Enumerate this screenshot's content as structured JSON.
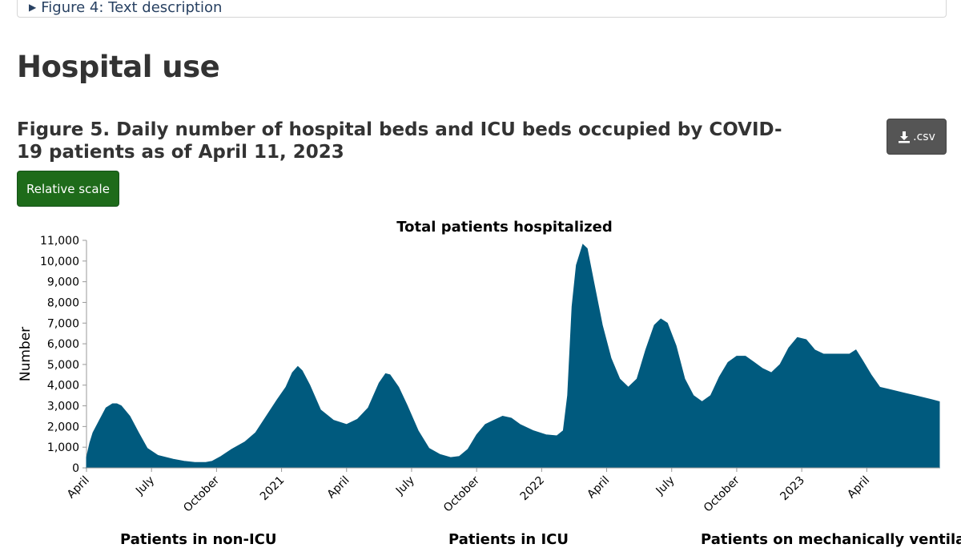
{
  "details": {
    "summary": "Figure 4: Text description"
  },
  "section_title": "Hospital use",
  "figure_title": "Figure 5. Daily number of hospital beds and ICU beds occupied by COVID-19 patients as of April 11, 2023",
  "buttons": {
    "csv_label": ".csv",
    "scale_label": "Relative scale"
  },
  "colors": {
    "bar": "#005a7e",
    "scale_button": "#1e6b1a",
    "csv_button": "#555555"
  },
  "chart_data": {
    "type": "area",
    "title": "Total patients hospitalized",
    "xlabel": "",
    "ylabel": "Number",
    "ylim": [
      0,
      11000
    ],
    "yticks": [
      0,
      1000,
      2000,
      3000,
      4000,
      5000,
      6000,
      7000,
      8000,
      9000,
      10000,
      11000
    ],
    "ytick_labels": [
      "0",
      "1,000",
      "2,000",
      "3,000",
      "4,000",
      "5,000",
      "6,000",
      "7,000",
      "8,000",
      "9,000",
      "10,000",
      "11,000"
    ],
    "x_start_month": "2020-04",
    "x_end_month": "2023-04",
    "xticks": [
      {
        "label": "April",
        "month_index": 0
      },
      {
        "label": "July",
        "month_index": 3
      },
      {
        "label": "October",
        "month_index": 6
      },
      {
        "label": "2021",
        "month_index": 9
      },
      {
        "label": "April",
        "month_index": 12
      },
      {
        "label": "July",
        "month_index": 15
      },
      {
        "label": "October",
        "month_index": 18
      },
      {
        "label": "2022",
        "month_index": 21
      },
      {
        "label": "April",
        "month_index": 24
      },
      {
        "label": "July",
        "month_index": 27
      },
      {
        "label": "October",
        "month_index": 30
      },
      {
        "label": "2023",
        "month_index": 33
      },
      {
        "label": "April",
        "month_index": 36
      }
    ],
    "series": [
      {
        "name": "Total patients hospitalized",
        "points": [
          [
            0.0,
            500
          ],
          [
            0.15,
            1200
          ],
          [
            0.3,
            1700
          ],
          [
            0.6,
            2300
          ],
          [
            0.9,
            2900
          ],
          [
            1.2,
            3100
          ],
          [
            1.4,
            3100
          ],
          [
            1.6,
            3000
          ],
          [
            2.0,
            2500
          ],
          [
            2.4,
            1700
          ],
          [
            2.8,
            950
          ],
          [
            3.3,
            600
          ],
          [
            4.0,
            420
          ],
          [
            4.5,
            320
          ],
          [
            5.0,
            260
          ],
          [
            5.5,
            260
          ],
          [
            5.8,
            320
          ],
          [
            6.2,
            550
          ],
          [
            6.7,
            900
          ],
          [
            7.3,
            1250
          ],
          [
            7.8,
            1700
          ],
          [
            8.3,
            2500
          ],
          [
            8.8,
            3300
          ],
          [
            9.2,
            3900
          ],
          [
            9.5,
            4600
          ],
          [
            9.75,
            4900
          ],
          [
            9.95,
            4700
          ],
          [
            10.3,
            4000
          ],
          [
            10.8,
            2800
          ],
          [
            11.4,
            2300
          ],
          [
            12.0,
            2100
          ],
          [
            12.5,
            2350
          ],
          [
            13.0,
            2900
          ],
          [
            13.5,
            4100
          ],
          [
            13.8,
            4550
          ],
          [
            14.0,
            4500
          ],
          [
            14.4,
            3900
          ],
          [
            14.8,
            3000
          ],
          [
            15.3,
            1800
          ],
          [
            15.8,
            950
          ],
          [
            16.3,
            650
          ],
          [
            16.8,
            500
          ],
          [
            17.2,
            550
          ],
          [
            17.6,
            900
          ],
          [
            18.0,
            1600
          ],
          [
            18.4,
            2100
          ],
          [
            18.8,
            2300
          ],
          [
            19.2,
            2500
          ],
          [
            19.6,
            2400
          ],
          [
            20.0,
            2100
          ],
          [
            20.6,
            1800
          ],
          [
            21.2,
            1600
          ],
          [
            21.7,
            1550
          ],
          [
            22.0,
            1800
          ],
          [
            22.2,
            3500
          ],
          [
            22.4,
            7800
          ],
          [
            22.6,
            9800
          ],
          [
            22.9,
            10800
          ],
          [
            23.1,
            10600
          ],
          [
            23.4,
            9000
          ],
          [
            23.8,
            6900
          ],
          [
            24.2,
            5300
          ],
          [
            24.6,
            4300
          ],
          [
            25.0,
            3900
          ],
          [
            25.4,
            4300
          ],
          [
            25.8,
            5700
          ],
          [
            26.2,
            6900
          ],
          [
            26.5,
            7200
          ],
          [
            26.8,
            7000
          ],
          [
            27.2,
            5900
          ],
          [
            27.6,
            4300
          ],
          [
            28.0,
            3500
          ],
          [
            28.4,
            3200
          ],
          [
            28.8,
            3500
          ],
          [
            29.2,
            4400
          ],
          [
            29.6,
            5100
          ],
          [
            30.0,
            5400
          ],
          [
            30.4,
            5400
          ],
          [
            30.8,
            5100
          ],
          [
            31.2,
            4800
          ],
          [
            31.6,
            4600
          ],
          [
            32.0,
            5000
          ],
          [
            32.4,
            5800
          ],
          [
            32.8,
            6300
          ],
          [
            33.2,
            6200
          ],
          [
            33.6,
            5700
          ],
          [
            34.0,
            5500
          ],
          [
            34.4,
            5500
          ],
          [
            34.8,
            5500
          ],
          [
            35.2,
            5500
          ],
          [
            35.5,
            5700
          ],
          [
            35.8,
            5200
          ],
          [
            36.2,
            4500
          ],
          [
            36.6,
            3900
          ],
          [
            37.0,
            3800
          ],
          [
            37.4,
            3700
          ],
          [
            37.8,
            3600
          ],
          [
            38.2,
            3500
          ],
          [
            38.6,
            3400
          ],
          [
            39.0,
            3300
          ],
          [
            39.35,
            3200
          ]
        ]
      }
    ]
  },
  "sub_charts": [
    "Patients in non-ICU",
    "Patients in ICU",
    "Patients on mechanically ventilated"
  ]
}
